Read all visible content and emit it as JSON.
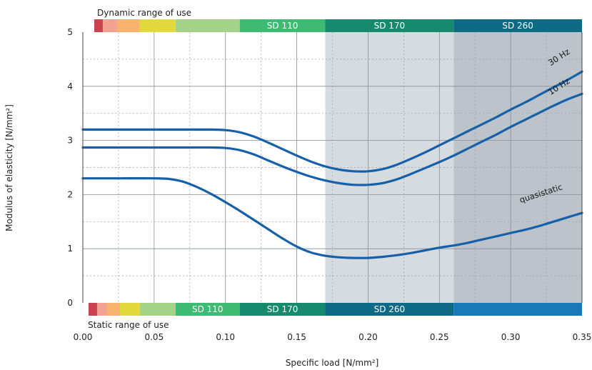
{
  "chart_data": {
    "type": "line",
    "xlabel": "Specific load [N/mm²]",
    "ylabel": "Modulus of elasticity [N/mm²]",
    "xlim": [
      0,
      0.35
    ],
    "ylim": [
      0,
      5
    ],
    "x_ticks": [
      "0.00",
      "0.05",
      "0.10",
      "0.15",
      "0.20",
      "0.25",
      "0.30",
      "0.35"
    ],
    "y_ticks": [
      "0",
      "1",
      "2",
      "3",
      "4",
      "5"
    ],
    "grid": true,
    "shaded_regions": [
      {
        "x": [
          0.17,
          0.26
        ],
        "color": "#d6dbe0"
      },
      {
        "x": [
          0.26,
          0.35
        ],
        "color": "#bcc3cb"
      }
    ],
    "series": [
      {
        "name": "30 Hz",
        "color": "#1560a8",
        "x": [
          0,
          0.025,
          0.05,
          0.075,
          0.09,
          0.1,
          0.11,
          0.12,
          0.13,
          0.14,
          0.15,
          0.16,
          0.17,
          0.18,
          0.19,
          0.2,
          0.21,
          0.22,
          0.23,
          0.24,
          0.25,
          0.26,
          0.27,
          0.28,
          0.29,
          0.3,
          0.31,
          0.32,
          0.33,
          0.34,
          0.35
        ],
        "values": [
          3.2,
          3.2,
          3.2,
          3.2,
          3.2,
          3.19,
          3.15,
          3.07,
          2.96,
          2.84,
          2.72,
          2.61,
          2.52,
          2.46,
          2.43,
          2.43,
          2.47,
          2.55,
          2.66,
          2.78,
          2.91,
          3.04,
          3.17,
          3.3,
          3.43,
          3.57,
          3.7,
          3.84,
          3.98,
          4.12,
          4.27
        ]
      },
      {
        "name": "10 Hz",
        "color": "#1560a8",
        "x": [
          0,
          0.025,
          0.05,
          0.075,
          0.09,
          0.1,
          0.11,
          0.12,
          0.13,
          0.14,
          0.15,
          0.16,
          0.17,
          0.18,
          0.19,
          0.2,
          0.21,
          0.22,
          0.23,
          0.24,
          0.25,
          0.26,
          0.27,
          0.28,
          0.29,
          0.3,
          0.31,
          0.32,
          0.33,
          0.34,
          0.35
        ],
        "values": [
          2.87,
          2.87,
          2.87,
          2.87,
          2.87,
          2.86,
          2.82,
          2.74,
          2.63,
          2.52,
          2.42,
          2.33,
          2.26,
          2.21,
          2.18,
          2.18,
          2.21,
          2.28,
          2.38,
          2.49,
          2.6,
          2.72,
          2.85,
          2.98,
          3.11,
          3.25,
          3.38,
          3.51,
          3.64,
          3.76,
          3.86
        ]
      },
      {
        "name": "quasistatic",
        "color": "#1560a8",
        "x": [
          0,
          0.025,
          0.05,
          0.06,
          0.07,
          0.08,
          0.09,
          0.1,
          0.11,
          0.12,
          0.13,
          0.14,
          0.15,
          0.16,
          0.17,
          0.18,
          0.19,
          0.2,
          0.21,
          0.22,
          0.23,
          0.24,
          0.25,
          0.26,
          0.27,
          0.28,
          0.29,
          0.3,
          0.31,
          0.32,
          0.33,
          0.34,
          0.35
        ],
        "values": [
          2.3,
          2.3,
          2.3,
          2.29,
          2.24,
          2.14,
          2.01,
          1.86,
          1.7,
          1.53,
          1.36,
          1.19,
          1.04,
          0.93,
          0.87,
          0.84,
          0.83,
          0.83,
          0.85,
          0.88,
          0.92,
          0.97,
          1.02,
          1.06,
          1.11,
          1.17,
          1.23,
          1.29,
          1.35,
          1.42,
          1.5,
          1.58,
          1.66
        ]
      }
    ],
    "top_bar": {
      "title": "Dynamic range of use",
      "bands": [
        {
          "x": [
            0.008,
            0.014
          ],
          "color": "#c8424f",
          "label": ""
        },
        {
          "x": [
            0.014,
            0.024
          ],
          "color": "#f2a293",
          "label": ""
        },
        {
          "x": [
            0.024,
            0.04
          ],
          "color": "#f5b36f",
          "label": ""
        },
        {
          "x": [
            0.04,
            0.065
          ],
          "color": "#e2da3c",
          "label": ""
        },
        {
          "x": [
            0.065,
            0.11
          ],
          "color": "#a3d288",
          "label": ""
        },
        {
          "x": [
            0.11,
            0.17
          ],
          "color": "#3fba73",
          "label": "SD 110"
        },
        {
          "x": [
            0.17,
            0.26
          ],
          "color": "#178a6e",
          "label": "SD 170"
        },
        {
          "x": [
            0.26,
            0.35
          ],
          "color": "#0f6a85",
          "label": "SD 260"
        }
      ]
    },
    "bottom_bar": {
      "title": "Static range of use",
      "bands": [
        {
          "x": [
            0.004,
            0.01
          ],
          "color": "#c8424f",
          "label": ""
        },
        {
          "x": [
            0.01,
            0.017
          ],
          "color": "#f2a293",
          "label": ""
        },
        {
          "x": [
            0.017,
            0.026
          ],
          "color": "#f5b36f",
          "label": ""
        },
        {
          "x": [
            0.026,
            0.04
          ],
          "color": "#e2da3c",
          "label": ""
        },
        {
          "x": [
            0.04,
            0.065
          ],
          "color": "#a3d288",
          "label": ""
        },
        {
          "x": [
            0.065,
            0.11
          ],
          "color": "#3fba73",
          "label": "SD 110"
        },
        {
          "x": [
            0.11,
            0.17
          ],
          "color": "#178a6e",
          "label": "SD 170"
        },
        {
          "x": [
            0.17,
            0.26
          ],
          "color": "#0f6a85",
          "label": "SD 260"
        },
        {
          "x": [
            0.26,
            0.35
          ],
          "color": "#1878b8",
          "label": ""
        }
      ]
    }
  }
}
